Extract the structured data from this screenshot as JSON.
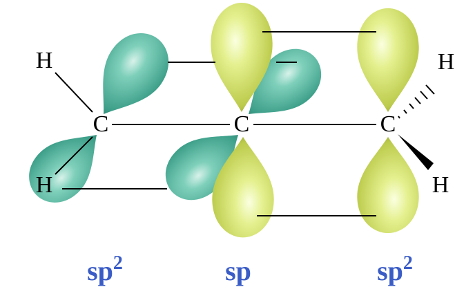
{
  "atoms": [
    "H",
    "H",
    "C",
    "C",
    "C",
    "H",
    "H"
  ],
  "hybridization": [
    {
      "base": "sp",
      "sup": "2"
    },
    {
      "base": "sp"
    },
    {
      "base": "sp",
      "sup": "2"
    }
  ]
}
